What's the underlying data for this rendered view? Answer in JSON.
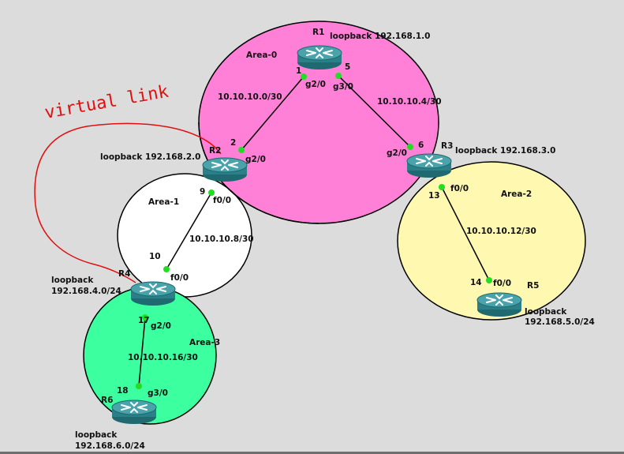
{
  "annotation": {
    "virtual_link": "virtual link"
  },
  "areas": {
    "area0": "Area-0",
    "area1": "Area-1",
    "area2": "Area-2",
    "area3": "Area-3"
  },
  "routers": {
    "r1": {
      "name": "R1",
      "loopback": "loopback 192.168.1.0"
    },
    "r2": {
      "name": "R2",
      "loopback": "loopback 192.168.2.0"
    },
    "r3": {
      "name": "R3",
      "loopback": "loopback 192.168.3.0"
    },
    "r4": {
      "name": "R4",
      "loopback_l1": "loopback",
      "loopback_l2": "192.168.4.0/24"
    },
    "r5": {
      "name": "R5",
      "loopback_l1": "loopback",
      "loopback_l2": "192.168.5.0/24"
    },
    "r6": {
      "name": "R6",
      "loopback_l1": "loopback",
      "loopback_l2": "192.168.6.0/24"
    }
  },
  "links": {
    "r1_r2": {
      "subnet": "10.10.10.0/30",
      "r1_ip": "1",
      "r1_if": "g2/0",
      "r2_ip": "2",
      "r2_if": "g2/0"
    },
    "r1_r3": {
      "subnet": "10.10.10.4/30",
      "r1_ip": "5",
      "r1_if": "g3/0",
      "r3_ip": "6",
      "r3_if": "g2/0"
    },
    "r2_r4": {
      "subnet": "10.10.10.8/30",
      "r2_ip": "9",
      "r2_if": "f0/0",
      "r4_ip": "10",
      "r4_if": "f0/0"
    },
    "r3_r5": {
      "subnet": "10.10.10.12/30",
      "r3_ip": "13",
      "r3_if": "f0/0",
      "r5_ip": "14",
      "r5_if": "f0/0"
    },
    "r4_r6": {
      "subnet": "10.10.10.16/30",
      "r4_ip": "17",
      "r4_if": "g2/0",
      "r6_ip": "18",
      "r6_if": "g3/0"
    }
  },
  "colors": {
    "area0": "#ff80d6",
    "area1": "#ffffff",
    "area2": "#fff8b0",
    "area3": "#3cffa0",
    "router_body": "#2e8b94",
    "port_dot": "#22dd22",
    "virtual_link": "#e01010"
  },
  "icons": {
    "router": "router-icon"
  }
}
